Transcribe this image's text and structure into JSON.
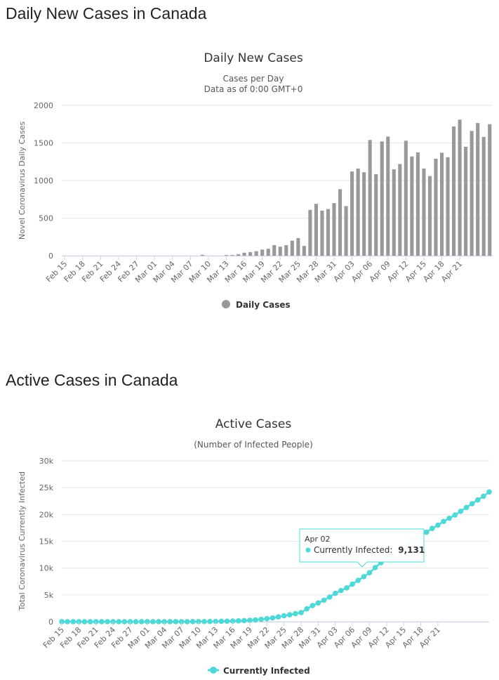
{
  "sections": [
    {
      "heading": "Daily New Cases in Canada"
    },
    {
      "heading": "Active Cases in Canada"
    }
  ],
  "chart_data": [
    {
      "type": "bar",
      "title": "Daily New Cases",
      "subtitle": [
        "Cases per Day",
        "Data as of 0:00 GMT+0"
      ],
      "xlabel": "",
      "ylabel": "Novel Coronavirus Daily Cases",
      "ylim": [
        0,
        2000
      ],
      "yticks": [
        "0",
        "500",
        "1000",
        "1500",
        "2000"
      ],
      "ytick_values": [
        0,
        500,
        1000,
        1500,
        2000
      ],
      "x_tick_labels": [
        "Feb 15",
        "Feb 18",
        "Feb 21",
        "Feb 24",
        "Feb 27",
        "Mar 01",
        "Mar 04",
        "Mar 07",
        "Mar 10",
        "Mar 13",
        "Mar 16",
        "Mar 19",
        "Mar 22",
        "Mar 25",
        "Mar 28",
        "Mar 31",
        "Apr 03",
        "Apr 06",
        "Apr 09",
        "Apr 12",
        "Apr 15",
        "Apr 18",
        "Apr 21"
      ],
      "legend": {
        "position": "bottom-center"
      },
      "color": "#999999",
      "series": [
        {
          "name": "Daily Cases",
          "values": [
            0,
            0,
            0,
            0,
            0,
            0,
            0,
            0,
            0,
            0,
            0,
            0,
            0,
            0,
            0,
            0,
            0,
            0,
            0,
            0,
            0,
            0,
            0,
            12,
            0,
            0,
            0,
            8,
            10,
            20,
            40,
            48,
            60,
            82,
            92,
            140,
            120,
            140,
            200,
            235,
            130,
            610,
            690,
            600,
            620,
            700,
            885,
            660,
            1120,
            1160,
            1110,
            1540,
            1085,
            1520,
            1585,
            1150,
            1220,
            1530,
            1320,
            1375,
            1160,
            1060,
            1290,
            1370,
            1310,
            1720,
            1810,
            1450,
            1660,
            1765,
            1580,
            1750
          ]
        }
      ]
    },
    {
      "type": "line",
      "title": "Active Cases",
      "subtitle": [
        "(Number of Infected People)"
      ],
      "xlabel": "",
      "ylabel": "Total Coronavirus Currently Infected",
      "ylim": [
        0,
        30000
      ],
      "yticks": [
        "0",
        "5k",
        "10k",
        "15k",
        "20k",
        "25k",
        "30k"
      ],
      "ytick_values": [
        0,
        5000,
        10000,
        15000,
        20000,
        25000,
        30000
      ],
      "x_tick_labels": [
        "Feb 15",
        "Feb 18",
        "Feb 21",
        "Feb 24",
        "Feb 27",
        "Mar 01",
        "Mar 04",
        "Mar 07",
        "Mar 10",
        "Mar 13",
        "Mar 16",
        "Mar 19",
        "Mar 22",
        "Mar 25",
        "Mar 28",
        "Mar 31",
        "Apr 03",
        "Apr 06",
        "Apr 09",
        "Apr 12",
        "Apr 15",
        "Apr 18",
        "Apr 21"
      ],
      "legend": {
        "position": "bottom-center"
      },
      "color": "#4fd8d8",
      "series": [
        {
          "name": "Currently Infected",
          "values": [
            6,
            6,
            6,
            6,
            6,
            6,
            6,
            6,
            6,
            6,
            6,
            6,
            6,
            6,
            6,
            6,
            6,
            6,
            6,
            6,
            6,
            6,
            6,
            20,
            25,
            30,
            40,
            55,
            70,
            90,
            120,
            150,
            200,
            260,
            340,
            450,
            560,
            700,
            900,
            1100,
            1300,
            1500,
            1700,
            2400,
            3000,
            3500,
            4000,
            4600,
            5300,
            5800,
            6300,
            7000,
            7700,
            8400,
            9131,
            10100,
            11000,
            11800,
            12500,
            13300,
            14000,
            14700,
            15400,
            16100,
            16700,
            17400,
            18000,
            18700,
            19300,
            19900,
            20600,
            21300,
            22000,
            22700,
            23400,
            24200
          ]
        }
      ],
      "tooltip": {
        "date": "Apr 02",
        "label": "Currently Infected:",
        "value": "9,131"
      }
    }
  ]
}
